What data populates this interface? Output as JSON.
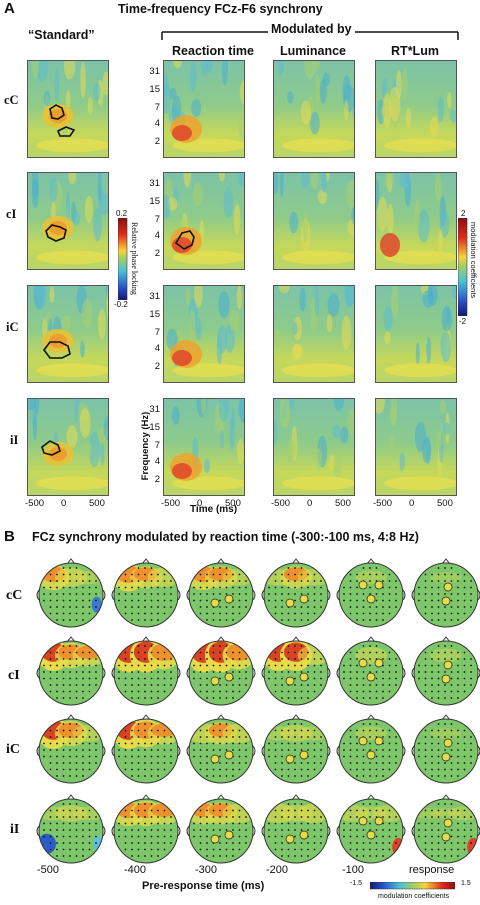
{
  "panelA": {
    "letter": "A",
    "title": "Time-frequency FCz-F6 synchrony",
    "standard_label": "“Standard”",
    "modulated_label": "Modulated by",
    "columns": [
      "Reaction time",
      "Luminance",
      "RT*Lum"
    ],
    "rows": [
      "cC",
      "cI",
      "iC",
      "iI"
    ],
    "freq_ticks": [
      "31",
      "15",
      "7",
      "4",
      "2"
    ],
    "time_ticks": [
      "-500",
      "0",
      "500"
    ],
    "ylabel": "Frequency (Hz)",
    "xlabel": "Time (ms)",
    "cbar_left": {
      "max": "0.2",
      "min": "-0.2",
      "label": "Relative phase locking"
    },
    "cbar_right": {
      "max": "2",
      "min": "-2",
      "label": "modulation coefficients"
    }
  },
  "panelB": {
    "letter": "B",
    "title": "FCz synchrony modulated by reaction time (-300:-100 ms, 4:8 Hz)",
    "rows": [
      "cC",
      "cI",
      "iC",
      "iI"
    ],
    "time_labels": [
      "-500",
      "-400",
      "-300",
      "-200",
      "-100",
      "response"
    ],
    "xlabel": "Pre-response time (ms)",
    "cbar": {
      "min": "-1.5",
      "max": "1.5",
      "label": "modulation coefficients"
    }
  },
  "colors": {
    "green": "#7ec66a",
    "yellow": "#e8e04a",
    "orange": "#f08a2a",
    "red": "#d42a1e",
    "cyan": "#5cc0d8",
    "blue": "#2a5cc8"
  }
}
